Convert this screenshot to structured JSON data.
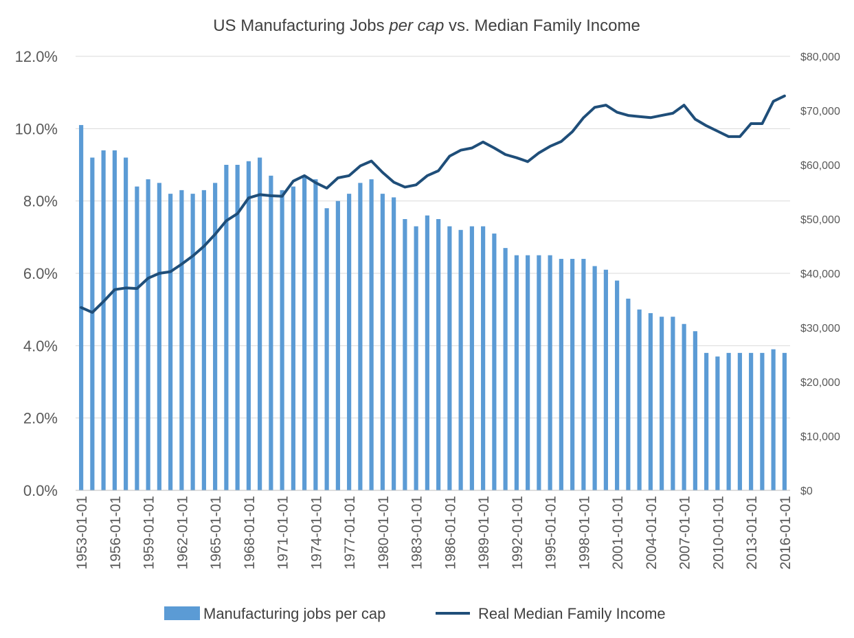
{
  "chart_data": {
    "type": "bar",
    "title_parts": [
      "US Manufacturing Jobs ",
      "per cap",
      " vs. Median Family Income"
    ],
    "x": [
      "1953-01-01",
      "1954-01-01",
      "1955-01-01",
      "1956-01-01",
      "1957-01-01",
      "1958-01-01",
      "1959-01-01",
      "1960-01-01",
      "1961-01-01",
      "1962-01-01",
      "1963-01-01",
      "1964-01-01",
      "1965-01-01",
      "1966-01-01",
      "1967-01-01",
      "1968-01-01",
      "1969-01-01",
      "1970-01-01",
      "1971-01-01",
      "1972-01-01",
      "1973-01-01",
      "1974-01-01",
      "1975-01-01",
      "1976-01-01",
      "1977-01-01",
      "1978-01-01",
      "1979-01-01",
      "1980-01-01",
      "1981-01-01",
      "1982-01-01",
      "1983-01-01",
      "1984-01-01",
      "1985-01-01",
      "1986-01-01",
      "1987-01-01",
      "1988-01-01",
      "1989-01-01",
      "1990-01-01",
      "1991-01-01",
      "1992-01-01",
      "1993-01-01",
      "1994-01-01",
      "1995-01-01",
      "1996-01-01",
      "1997-01-01",
      "1998-01-01",
      "1999-01-01",
      "2000-01-01",
      "2001-01-01",
      "2002-01-01",
      "2003-01-01",
      "2004-01-01",
      "2005-01-01",
      "2006-01-01",
      "2007-01-01",
      "2008-01-01",
      "2009-01-01",
      "2010-01-01",
      "2011-01-01",
      "2012-01-01",
      "2013-01-01",
      "2014-01-01",
      "2015-01-01",
      "2016-01-01"
    ],
    "x_tick_labels": [
      "1953-01-01",
      "1956-01-01",
      "1959-01-01",
      "1962-01-01",
      "1965-01-01",
      "1968-01-01",
      "1971-01-01",
      "1974-01-01",
      "1977-01-01",
      "1980-01-01",
      "1983-01-01",
      "1986-01-01",
      "1989-01-01",
      "1992-01-01",
      "1995-01-01",
      "1998-01-01",
      "2001-01-01",
      "2004-01-01",
      "2007-01-01",
      "2010-01-01",
      "2013-01-01",
      "2016-01-01"
    ],
    "series": [
      {
        "name": "Manufacturing jobs per cap",
        "type": "bar",
        "axis": "left",
        "color": "#5b9bd5",
        "values": [
          10.1,
          9.2,
          9.4,
          9.4,
          9.2,
          8.4,
          8.6,
          8.5,
          8.2,
          8.3,
          8.2,
          8.3,
          8.5,
          9.0,
          9.0,
          9.1,
          9.2,
          8.7,
          8.3,
          8.4,
          8.7,
          8.6,
          7.8,
          8.0,
          8.2,
          8.5,
          8.6,
          8.2,
          8.1,
          7.5,
          7.3,
          7.6,
          7.5,
          7.3,
          7.2,
          7.3,
          7.3,
          7.1,
          6.7,
          6.5,
          6.5,
          6.5,
          6.5,
          6.4,
          6.4,
          6.4,
          6.2,
          6.1,
          5.8,
          5.3,
          5.0,
          4.9,
          4.8,
          4.8,
          4.6,
          4.4,
          3.8,
          3.7,
          3.8,
          3.8,
          3.8,
          3.8,
          3.9,
          3.8
        ]
      },
      {
        "name": "Real Median Family Income",
        "type": "line",
        "axis": "right",
        "color": "#1f4e79",
        "values": [
          33700,
          32800,
          34800,
          37000,
          37300,
          37200,
          39100,
          40000,
          40300,
          41700,
          43200,
          45000,
          47200,
          49700,
          51000,
          53900,
          54500,
          54300,
          54200,
          57000,
          58000,
          56700,
          55700,
          57600,
          58000,
          59800,
          60700,
          58600,
          56800,
          55900,
          56300,
          58000,
          58900,
          61600,
          62700,
          63100,
          64200,
          63100,
          61900,
          61300,
          60600,
          62200,
          63400,
          64300,
          66100,
          68700,
          70600,
          71000,
          69700,
          69100,
          68900,
          68700,
          69100,
          69500,
          71000,
          68400,
          67200,
          66200,
          65200,
          65200,
          67600,
          67600,
          71700,
          72700
        ]
      }
    ],
    "y_left": {
      "min": 0,
      "max": 12,
      "ticks": [
        0,
        2,
        4,
        6,
        8,
        10,
        12
      ],
      "tick_labels": [
        "0.0%",
        "2.0%",
        "4.0%",
        "6.0%",
        "8.0%",
        "10.0%",
        "12.0%"
      ]
    },
    "y_right": {
      "min": 0,
      "max": 80000,
      "ticks": [
        0,
        10000,
        20000,
        30000,
        40000,
        50000,
        60000,
        70000,
        80000
      ],
      "tick_labels": [
        "$0",
        "$10,000",
        "$20,000",
        "$30,000",
        "$40,000",
        "$50,000",
        "$60,000",
        "$70,000",
        "$80,000"
      ]
    },
    "grid": true,
    "gridline_color": "#d9d9d9",
    "legend": {
      "position": "bottom",
      "entries": [
        "Manufacturing jobs per cap",
        "Real Median Family Income"
      ]
    }
  }
}
